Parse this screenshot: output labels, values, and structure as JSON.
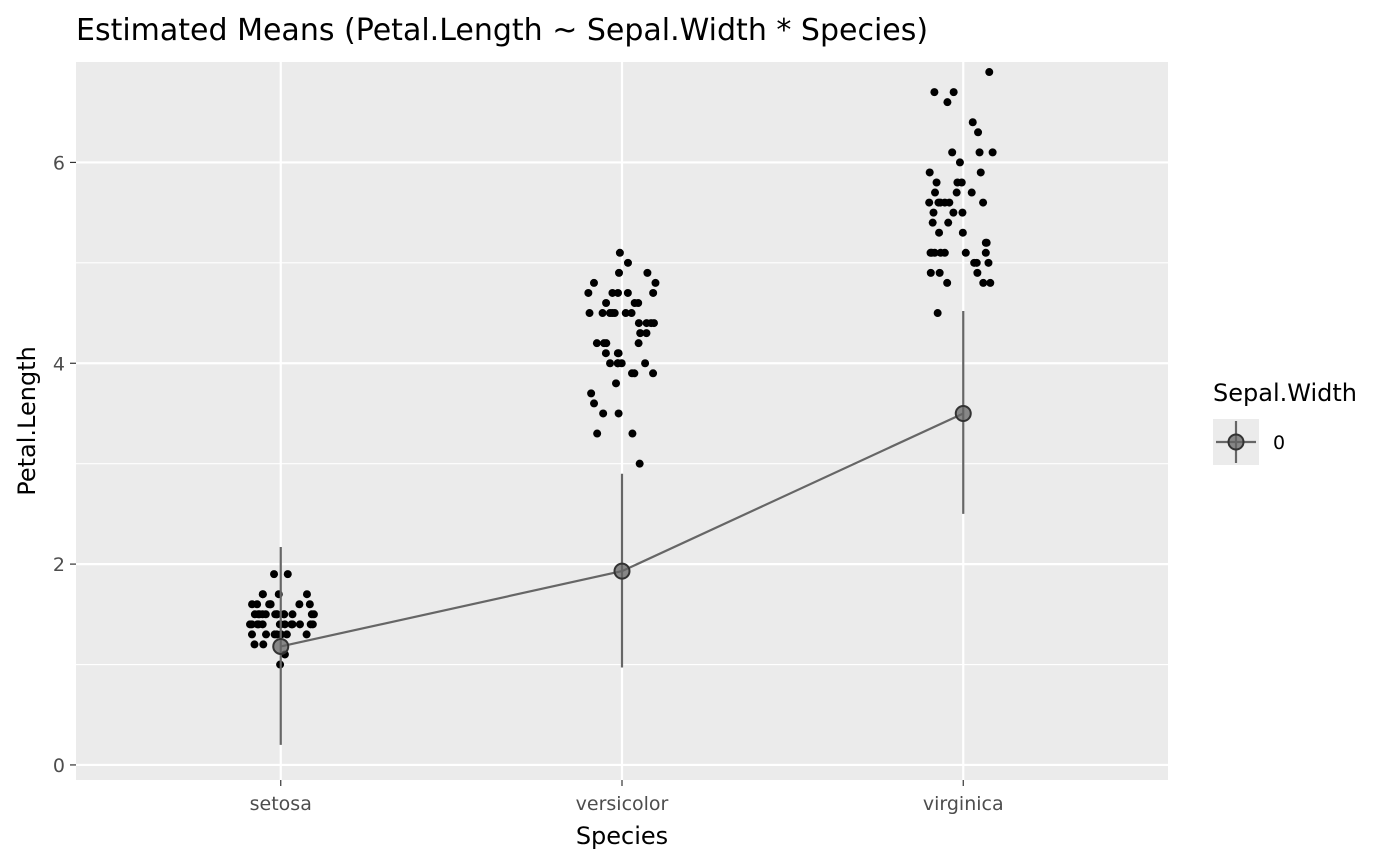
{
  "chart_data": {
    "type": "scatter",
    "title": "Estimated Means (Petal.Length ~ Sepal.Width * Species)",
    "xlabel": "Species",
    "ylabel": "Petal.Length",
    "categories": [
      "setosa",
      "versicolor",
      "virginica"
    ],
    "ylim": [
      -0.15,
      7.0
    ],
    "yticks": [
      0,
      2,
      4,
      6
    ],
    "grid": true,
    "legend": {
      "title": "Sepal.Width",
      "placement": "right",
      "entries": [
        {
          "label": "0"
        }
      ]
    },
    "means": {
      "estimate": [
        1.18,
        1.93,
        3.5
      ],
      "ci_low": [
        0.2,
        0.97,
        2.5
      ],
      "ci_high": [
        2.17,
        2.9,
        4.52
      ]
    },
    "points": {
      "setosa": [
        1.0,
        1.1,
        1.2,
        1.2,
        1.3,
        1.3,
        1.3,
        1.3,
        1.3,
        1.3,
        1.3,
        1.4,
        1.4,
        1.4,
        1.4,
        1.4,
        1.4,
        1.4,
        1.4,
        1.4,
        1.4,
        1.4,
        1.4,
        1.4,
        1.5,
        1.5,
        1.5,
        1.5,
        1.5,
        1.5,
        1.5,
        1.5,
        1.5,
        1.5,
        1.5,
        1.5,
        1.5,
        1.6,
        1.6,
        1.6,
        1.6,
        1.6,
        1.6,
        1.6,
        1.7,
        1.7,
        1.7,
        1.7,
        1.9,
        1.9
      ],
      "versicolor": [
        3.0,
        3.3,
        3.3,
        3.5,
        3.5,
        3.6,
        3.7,
        3.8,
        3.9,
        3.9,
        3.9,
        4.0,
        4.0,
        4.0,
        4.0,
        4.0,
        4.1,
        4.1,
        4.1,
        4.2,
        4.2,
        4.2,
        4.2,
        4.3,
        4.3,
        4.4,
        4.4,
        4.4,
        4.4,
        4.5,
        4.5,
        4.5,
        4.5,
        4.5,
        4.5,
        4.5,
        4.6,
        4.6,
        4.6,
        4.7,
        4.7,
        4.7,
        4.7,
        4.7,
        4.8,
        4.8,
        4.9,
        4.9,
        5.0,
        5.1
      ],
      "virginica": [
        4.5,
        4.8,
        4.8,
        4.8,
        4.9,
        4.9,
        4.9,
        5.0,
        5.0,
        5.0,
        5.1,
        5.1,
        5.1,
        5.1,
        5.1,
        5.1,
        5.1,
        5.2,
        5.2,
        5.3,
        5.3,
        5.4,
        5.4,
        5.5,
        5.5,
        5.5,
        5.6,
        5.6,
        5.6,
        5.6,
        5.6,
        5.6,
        5.7,
        5.7,
        5.7,
        5.8,
        5.8,
        5.8,
        5.9,
        5.9,
        6.0,
        6.1,
        6.1,
        6.1,
        6.3,
        6.4,
        6.6,
        6.7,
        6.7,
        6.9
      ]
    },
    "colors": {
      "panel": "#ebebeb",
      "grid": "#ffffff",
      "points": "#000000",
      "means": "#666666"
    }
  }
}
